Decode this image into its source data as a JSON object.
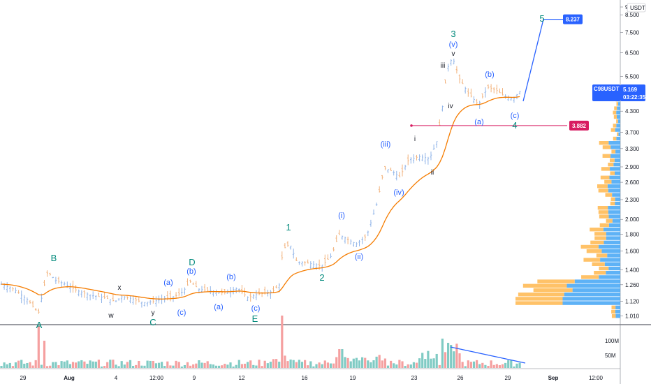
{
  "chart_data": {
    "type": "candlestick",
    "currency": "USDT",
    "symbol": "C98USDT",
    "last_price": "5.169",
    "countdown": "03:22:35",
    "scale": "log",
    "ylim": [
      0.95,
      9.3
    ],
    "y_ticks": [
      "9",
      "8.500",
      "7.500",
      "6.500",
      "5.500",
      "4.300",
      "3.700",
      "3.300",
      "2.900",
      "2.600",
      "2.300",
      "2.000",
      "1.800",
      "1.600",
      "1.400",
      "1.260",
      "1.120",
      "1.010"
    ],
    "x_ticks": [
      "29",
      "Aug",
      "4",
      "12:00",
      "9",
      "12",
      "16",
      "19",
      "23",
      "26",
      "29",
      "Sep",
      "12:00"
    ],
    "volume_ticks": [
      "100M",
      "50M"
    ],
    "target_label": "8.237",
    "support_label": "3.882",
    "support_level": 3.882,
    "target_level": 8.237,
    "wave_labels_main": [
      "A",
      "B",
      "C",
      "D",
      "E",
      "1",
      "2",
      "3",
      "4",
      "5"
    ],
    "wave_labels_minor": [
      "(a)",
      "(b)",
      "(c)",
      "(a)",
      "(b)",
      "(c)",
      "(i)",
      "(ii)",
      "(iii)",
      "(iv)",
      "(v)",
      "(a)",
      "(b)",
      "(c)"
    ],
    "wave_labels_sub": [
      "x",
      "w",
      "y",
      "i",
      "ii",
      "iii",
      "iv",
      "v",
      "iv"
    ],
    "colors": {
      "up": "#26a69a",
      "down": "#ef5350",
      "ma": "#f57c00",
      "wave": "#2962ff",
      "wave_main": "#00897b",
      "target": "#2962ff",
      "support": "#d81b60",
      "vp_blue": "#42a5f5",
      "vp_orange": "#ffb74d"
    }
  }
}
